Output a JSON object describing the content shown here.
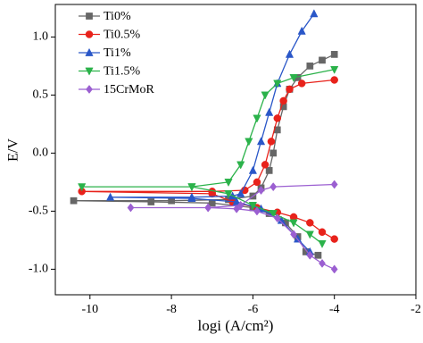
{
  "chart_data": {
    "type": "line",
    "x_label": "logi (A/cm²)",
    "y_label": "E/V",
    "xlim": [
      -10.85,
      -2
    ],
    "ylim": [
      -1.22,
      1.28
    ],
    "xticks": [
      -10,
      -8,
      -6,
      -4,
      -2
    ],
    "yticks": [
      {
        "value": 1,
        "label": "1.0"
      },
      0.5,
      {
        "value": 0,
        "label": "0.0"
      },
      -0.5,
      {
        "value": -1,
        "label": "-1.0"
      }
    ],
    "legend": "upper left",
    "series": [
      {
        "name": "Ti0%",
        "color": "#666666",
        "marker": "square",
        "x": [
          -4.4,
          -4.7,
          -4.9,
          -5.2,
          -5.6,
          -6.0,
          -7.0,
          -8.5,
          -10.4,
          -8.0,
          -6.6,
          -6.0,
          -5.8,
          -5.6,
          -5.5,
          -5.4,
          -5.25,
          -5.1,
          -4.9,
          -4.6,
          -4.3,
          -4.0
        ],
        "values": [
          -0.88,
          -0.85,
          -0.72,
          -0.6,
          -0.52,
          -0.47,
          -0.43,
          -0.42,
          -0.41,
          -0.41,
          -0.4,
          -0.37,
          -0.3,
          -0.15,
          0.0,
          0.2,
          0.4,
          0.55,
          0.65,
          0.75,
          0.8,
          0.85
        ]
      },
      {
        "name": "Ti0.5%",
        "color": "#e8221b",
        "marker": "circle",
        "x": [
          -4.0,
          -4.3,
          -4.6,
          -5.0,
          -5.4,
          -5.9,
          -6.5,
          -7.0,
          -10.2,
          -7.0,
          -6.2,
          -5.9,
          -5.7,
          -5.55,
          -5.4,
          -5.25,
          -5.1,
          -4.8,
          -4.0
        ],
        "values": [
          -0.74,
          -0.68,
          -0.6,
          -0.55,
          -0.51,
          -0.47,
          -0.42,
          -0.35,
          -0.33,
          -0.33,
          -0.32,
          -0.25,
          -0.1,
          0.1,
          0.3,
          0.45,
          0.55,
          0.6,
          0.63
        ]
      },
      {
        "name": "Ti1%",
        "color": "#2a57c8",
        "marker": "triangle-up",
        "x": [
          -4.6,
          -4.9,
          -5.3,
          -5.8,
          -6.4,
          -7.5,
          -9.5,
          -7.5,
          -6.5,
          -6.3,
          -6.0,
          -5.8,
          -5.6,
          -5.4,
          -5.1,
          -4.8,
          -4.5
        ],
        "values": [
          -0.85,
          -0.74,
          -0.58,
          -0.48,
          -0.42,
          -0.39,
          -0.38,
          -0.38,
          -0.37,
          -0.35,
          -0.15,
          0.1,
          0.35,
          0.6,
          0.85,
          1.05,
          1.2
        ]
      },
      {
        "name": "Ti1.5%",
        "color": "#2bb24a",
        "marker": "triangle-down",
        "x": [
          -4.3,
          -4.6,
          -5.0,
          -5.5,
          -6.0,
          -6.6,
          -7.5,
          -10.2,
          -7.5,
          -6.6,
          -6.3,
          -6.1,
          -5.9,
          -5.7,
          -5.4,
          -5.0,
          -4.0
        ],
        "values": [
          -0.78,
          -0.7,
          -0.6,
          -0.52,
          -0.45,
          -0.35,
          -0.29,
          -0.29,
          -0.29,
          -0.25,
          -0.1,
          0.1,
          0.3,
          0.5,
          0.6,
          0.65,
          0.72
        ]
      },
      {
        "name": "15CrMoR",
        "color": "#9b5fd1",
        "marker": "diamond",
        "x": [
          -4.0,
          -4.3,
          -4.6,
          -5.0,
          -5.4,
          -5.9,
          -6.4,
          -7.1,
          -9.0,
          -7.1,
          -6.3,
          -5.8,
          -5.5,
          -4.0
        ],
        "values": [
          -1.0,
          -0.95,
          -0.88,
          -0.7,
          -0.56,
          -0.5,
          -0.48,
          -0.47,
          -0.47,
          -0.47,
          -0.45,
          -0.32,
          -0.29,
          -0.27
        ]
      }
    ]
  }
}
